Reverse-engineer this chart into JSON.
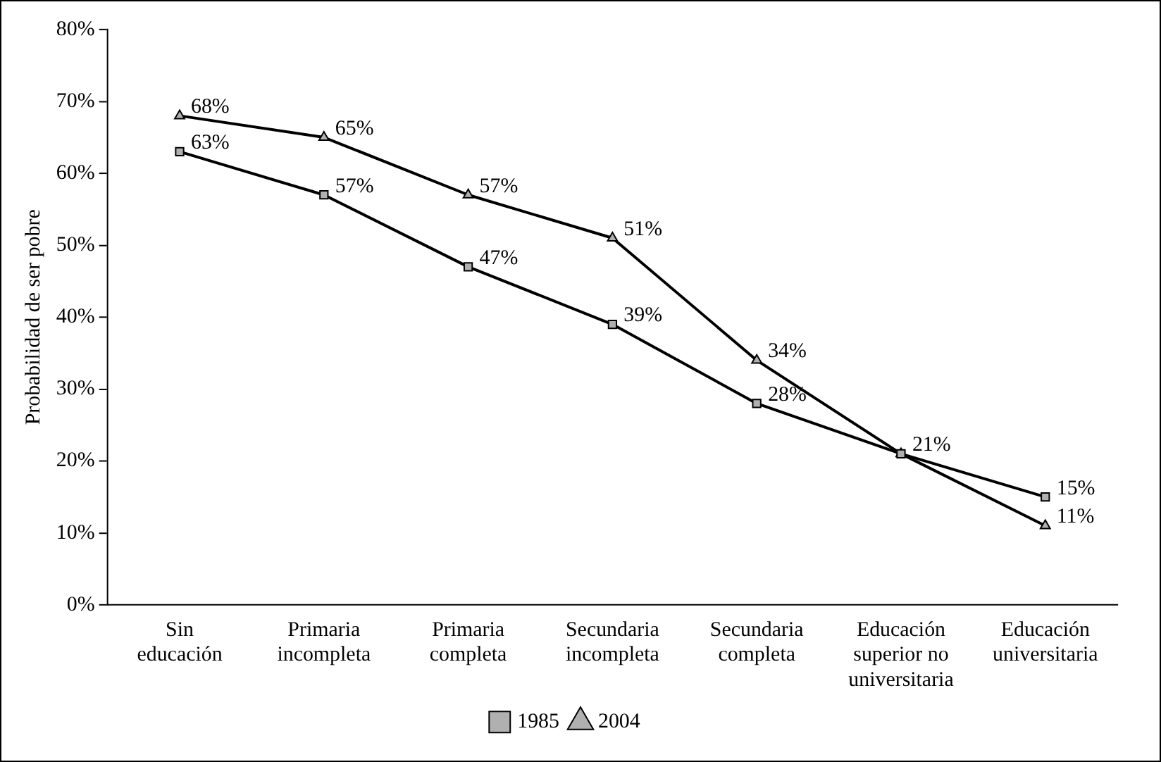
{
  "chart_data": {
    "type": "line",
    "ylabel": "Probabilidad de ser pobre",
    "categories": [
      "Sin educación",
      "Primaria incompleta",
      "Primaria completa",
      "Secundaria incompleta",
      "Secundaria completa",
      "Educación superior no universitaria",
      "Educación universitaria"
    ],
    "series": [
      {
        "name": "1985",
        "color": "#000000",
        "marker": "square",
        "values": [
          63,
          57,
          47,
          39,
          28,
          21,
          15
        ],
        "value_labels": [
          "63%",
          "57%",
          "47%",
          "39%",
          "28%",
          "21%",
          "15%"
        ]
      },
      {
        "name": "2004",
        "color": "#000000",
        "marker": "triangle",
        "values": [
          68,
          65,
          57,
          51,
          34,
          21,
          11
        ],
        "value_labels": [
          "68%",
          "65%",
          "57%",
          "51%",
          "34%",
          null,
          "11%"
        ]
      }
    ],
    "ylim": [
      0,
      80
    ],
    "yticks": [
      {
        "value": 0,
        "label": "0%"
      },
      {
        "value": 10,
        "label": "10%"
      },
      {
        "value": 20,
        "label": "20%"
      },
      {
        "value": 30,
        "label": "30%"
      },
      {
        "value": 40,
        "label": "40%"
      },
      {
        "value": 50,
        "label": "50%"
      },
      {
        "value": 60,
        "label": "60%"
      },
      {
        "value": 70,
        "label": "70%"
      },
      {
        "value": 80,
        "label": "80%"
      }
    ],
    "grid": false,
    "legend": "bottom",
    "line_style": "solid"
  }
}
